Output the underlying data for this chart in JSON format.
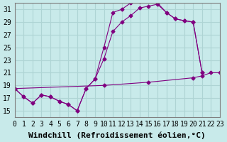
{
  "background_color": "#c8eaea",
  "grid_color": "#aed4d4",
  "line_color": "#800080",
  "xlabel": "Windchill (Refroidissement éolien,°C)",
  "xlim": [
    0,
    23
  ],
  "ylim": [
    14,
    32
  ],
  "yticks": [
    15,
    17,
    19,
    21,
    23,
    25,
    27,
    29,
    31
  ],
  "xticks": [
    0,
    1,
    2,
    3,
    4,
    5,
    6,
    7,
    8,
    9,
    10,
    11,
    12,
    13,
    14,
    15,
    16,
    17,
    18,
    19,
    20,
    21,
    22,
    23
  ],
  "line1_x": [
    0,
    1,
    2,
    3,
    4,
    5,
    6,
    7,
    8,
    9,
    10,
    11,
    12,
    13,
    14,
    15,
    16,
    17,
    18,
    19,
    20,
    21
  ],
  "line1_y": [
    18.5,
    17.2,
    16.2,
    17.5,
    17.2,
    16.5,
    16.0,
    15.0,
    18.5,
    20.0,
    25.0,
    30.5,
    31.0,
    32.0,
    32.2,
    32.5,
    32.0,
    30.5,
    29.5,
    29.2,
    29.0,
    21.0
  ],
  "line2_x": [
    0,
    1,
    2,
    3,
    4,
    5,
    6,
    7,
    8,
    9,
    10,
    11,
    12,
    13,
    14,
    15,
    16,
    17,
    18,
    19,
    20,
    21
  ],
  "line2_y": [
    18.5,
    17.2,
    16.2,
    17.5,
    17.2,
    16.5,
    16.0,
    15.0,
    18.5,
    20.0,
    23.2,
    27.5,
    29.0,
    30.0,
    31.2,
    31.5,
    31.8,
    30.5,
    29.5,
    29.2,
    29.0,
    21.0
  ],
  "line3_x": [
    0,
    10,
    15,
    20,
    21,
    22,
    23
  ],
  "line3_y": [
    18.5,
    19.0,
    19.5,
    20.2,
    20.5,
    21.0,
    21.0
  ],
  "font_family": "monospace",
  "xlabel_fontsize": 8,
  "tick_fontsize": 7
}
